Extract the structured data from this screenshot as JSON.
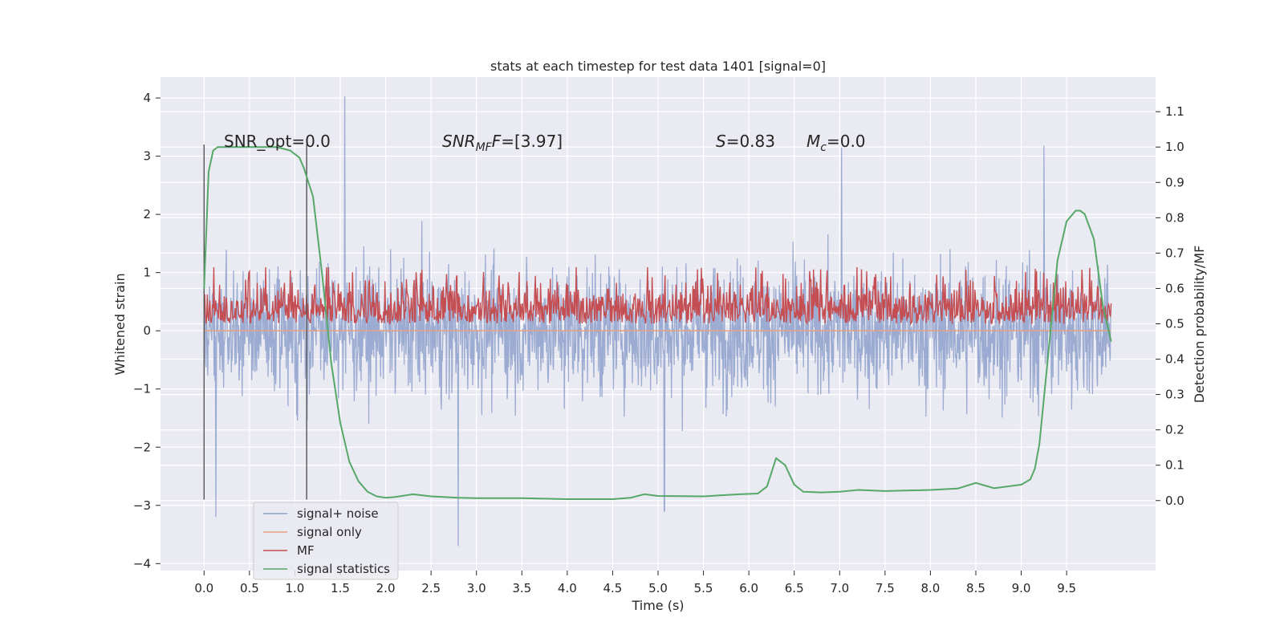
{
  "chart_data": {
    "type": "line",
    "title": "stats at each timestep for test data 1401 [signal=0]",
    "xlabel": "Time (s)",
    "ylabel": "Whitened strain",
    "y2label": "Detection probability/MF",
    "xlim": [
      -0.48,
      10.48
    ],
    "ylim": [
      -4.12,
      4.36
    ],
    "y2lim": [
      -0.198,
      1.198
    ],
    "grid": true,
    "xticks": [
      "0.0",
      "0.5",
      "1.0",
      "1.5",
      "2.0",
      "2.5",
      "3.0",
      "3.5",
      "4.0",
      "4.5",
      "5.0",
      "5.5",
      "6.0",
      "6.5",
      "7.0",
      "7.5",
      "8.0",
      "8.5",
      "9.0",
      "9.5"
    ],
    "yticks": [
      "4",
      "3",
      "2",
      "1",
      "0",
      "−1",
      "−2",
      "−3",
      "−4"
    ],
    "y2ticks": [
      "1.1",
      "1.0",
      "0.9",
      "0.8",
      "0.7",
      "0.6",
      "0.5",
      "0.4",
      "0.3",
      "0.2",
      "0.1",
      "0.0"
    ],
    "annotations": {
      "snr_opt": "SNR_opt=0.0",
      "snr_mf_main": "SNR",
      "snr_mf_sub": "MF",
      "snr_mf_rest": "=[3.97]",
      "s_main": "S",
      "s_rest": "=0.83",
      "mc_main": "M",
      "mc_sub": "c",
      "mc_rest": "=0.0"
    },
    "vertical_lines_x": [
      0.0,
      1.13
    ],
    "vertical_lines_range": [
      -2.9,
      3.2
    ],
    "legend": {
      "placement": "lower-left",
      "entries": [
        "signal+ noise",
        "signal only",
        "MF",
        "signal statistics"
      ]
    },
    "series": [
      {
        "name": "signal+ noise",
        "axis": "left",
        "color": "#8da0cb",
        "x_range": [
          0.0,
          9.99
        ],
        "points": 2000,
        "envelope_typical": [
          -2.2,
          2.3
        ],
        "notable_peaks": [
          [
            1.55,
            4.03
          ],
          [
            2.8,
            -3.7
          ],
          [
            0.13,
            -3.2
          ],
          [
            5.07,
            -3.1
          ],
          [
            7.02,
            3.15
          ],
          [
            9.25,
            3.18
          ]
        ]
      },
      {
        "name": "signal only",
        "axis": "left",
        "color": "#e8a083",
        "x": [
          0.0,
          9.99
        ],
        "y": [
          0.0,
          0.0
        ]
      },
      {
        "name": "MF",
        "axis": "right",
        "color": "#c44e52",
        "x_range": [
          0.0,
          9.99
        ],
        "typical_range": [
          0.5,
          0.62
        ],
        "max": 0.66
      },
      {
        "name": "signal statistics",
        "axis": "right",
        "color": "#55a868",
        "x": [
          0.0,
          0.05,
          0.1,
          0.15,
          0.25,
          0.4,
          0.6,
          0.8,
          0.95,
          1.05,
          1.1,
          1.2,
          1.3,
          1.4,
          1.5,
          1.6,
          1.7,
          1.8,
          1.9,
          2.0,
          2.1,
          2.3,
          2.5,
          2.8,
          3.0,
          3.5,
          4.0,
          4.5,
          4.7,
          4.85,
          5.0,
          5.5,
          5.7,
          5.9,
          6.1,
          6.2,
          6.3,
          6.4,
          6.5,
          6.6,
          6.8,
          7.0,
          7.2,
          7.5,
          8.0,
          8.3,
          8.5,
          8.7,
          9.0,
          9.1,
          9.15,
          9.2,
          9.3,
          9.4,
          9.5,
          9.6,
          9.65,
          9.7,
          9.8,
          9.9,
          9.99
        ],
        "y": [
          0.6,
          0.93,
          0.99,
          1.0,
          1.0,
          1.0,
          1.0,
          1.0,
          0.99,
          0.97,
          0.94,
          0.86,
          0.64,
          0.39,
          0.22,
          0.11,
          0.055,
          0.025,
          0.012,
          0.008,
          0.01,
          0.018,
          0.012,
          0.008,
          0.007,
          0.007,
          0.004,
          0.004,
          0.008,
          0.018,
          0.013,
          0.012,
          0.015,
          0.018,
          0.02,
          0.04,
          0.12,
          0.1,
          0.045,
          0.025,
          0.023,
          0.025,
          0.03,
          0.027,
          0.03,
          0.034,
          0.05,
          0.035,
          0.045,
          0.06,
          0.09,
          0.16,
          0.42,
          0.68,
          0.79,
          0.82,
          0.82,
          0.81,
          0.74,
          0.55,
          0.45
        ]
      }
    ]
  }
}
